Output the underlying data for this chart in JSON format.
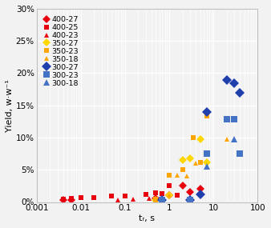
{
  "xlabel": "tᵣ, s",
  "ylabel": "Yield, w·w⁻¹",
  "xlim": [
    0.001,
    100
  ],
  "ylim": [
    0,
    0.3
  ],
  "yticks": [
    0.0,
    0.05,
    0.1,
    0.15,
    0.2,
    0.25,
    0.3
  ],
  "ytick_labels": [
    "0%",
    "5%",
    "10%",
    "15%",
    "20%",
    "25%",
    "30%"
  ],
  "xticks": [
    0.001,
    0.01,
    0.1,
    1,
    10,
    100
  ],
  "xtick_labels": [
    "0.001",
    "0.01",
    "0.1",
    "1",
    "10",
    "100"
  ],
  "series": [
    {
      "label": "400-27",
      "color": "#E8000E",
      "marker": "D",
      "markersize": 5,
      "x": [
        0.004,
        0.006,
        0.5,
        1.0,
        2.0,
        3.0,
        5.0
      ],
      "y": [
        0.003,
        0.003,
        0.005,
        0.01,
        0.025,
        0.015,
        0.02
      ]
    },
    {
      "label": "400-25",
      "color": "#E8000E",
      "marker": "s",
      "markersize": 5,
      "x": [
        0.004,
        0.006,
        0.01,
        0.02,
        0.05,
        0.1,
        0.3,
        0.5,
        0.7,
        1.0,
        1.5
      ],
      "y": [
        0.004,
        0.005,
        0.007,
        0.007,
        0.009,
        0.009,
        0.012,
        0.014,
        0.013,
        0.025,
        0.01
      ]
    },
    {
      "label": "400-23",
      "color": "#E8000E",
      "marker": "^",
      "markersize": 5,
      "x": [
        0.07,
        0.15,
        0.35,
        0.5,
        0.7
      ],
      "y": [
        0.003,
        0.004,
        0.006,
        0.007,
        0.005
      ]
    },
    {
      "label": "350-27",
      "color": "#FFD700",
      "marker": "D",
      "markersize": 5,
      "x": [
        0.5,
        1.0,
        2.0,
        3.0,
        5.0,
        7.0
      ],
      "y": [
        0.003,
        0.01,
        0.065,
        0.068,
        0.097,
        0.062
      ]
    },
    {
      "label": "350-23",
      "color": "#FFA500",
      "marker": "s",
      "markersize": 5,
      "x": [
        0.5,
        1.0,
        2.0,
        3.5,
        5.0,
        7.0
      ],
      "y": [
        0.004,
        0.042,
        0.05,
        0.1,
        0.062,
        0.133
      ]
    },
    {
      "label": "350-18",
      "color": "#FFA500",
      "marker": "^",
      "markersize": 5,
      "x": [
        0.5,
        1.0,
        1.5,
        2.5,
        4.0,
        20.0
      ],
      "y": [
        0.003,
        0.01,
        0.042,
        0.04,
        0.06,
        0.098
      ]
    },
    {
      "label": "300-27",
      "color": "#1F3FAD",
      "marker": "D",
      "markersize": 6,
      "x": [
        0.7,
        3.0,
        5.0,
        7.0,
        20.0,
        30.0,
        40.0
      ],
      "y": [
        0.003,
        0.003,
        0.012,
        0.14,
        0.19,
        0.185,
        0.17
      ]
    },
    {
      "label": "300-23",
      "color": "#4472C4",
      "marker": "s",
      "markersize": 6,
      "x": [
        0.7,
        3.0,
        7.0,
        20.0,
        30.0,
        40.0
      ],
      "y": [
        0.003,
        0.003,
        0.075,
        0.128,
        0.128,
        0.075
      ]
    },
    {
      "label": "300-18",
      "color": "#4472C4",
      "marker": "^",
      "markersize": 6,
      "x": [
        0.7,
        3.0,
        7.0,
        30.0
      ],
      "y": [
        0.003,
        0.003,
        0.055,
        0.098
      ]
    }
  ],
  "legend_fontsize": 6.8,
  "plot_bg": "#f2f2f2",
  "fig_bg": "#f2f2f2",
  "grid_color": "#ffffff",
  "tick_fontsize": 7.5
}
